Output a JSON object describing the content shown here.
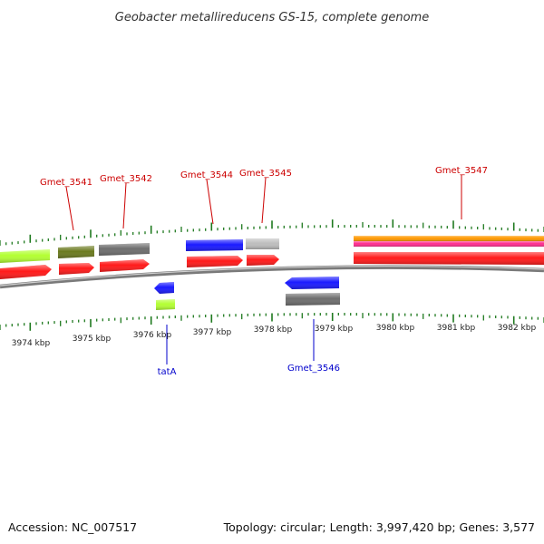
{
  "title": "Geobacter metallireducens GS-15, complete genome",
  "footer": {
    "accession": "Accession: NC_007517",
    "summary": "Topology: circular; Length: 3,997,420 bp; Genes: 3,577"
  },
  "scale_labels": [
    "3974 kbp",
    "3975 kbp",
    "3976 kbp",
    "3977 kbp",
    "3978 kbp",
    "3979 kbp",
    "3980 kbp",
    "3981 kbp",
    "3982 kbp"
  ],
  "gene_labels": [
    {
      "name": "Gmet_3541",
      "strand": "forward",
      "color": "#cc0000"
    },
    {
      "name": "Gmet_3542",
      "strand": "forward",
      "color": "#cc0000"
    },
    {
      "name": "Gmet_3544",
      "strand": "forward",
      "color": "#cc0000"
    },
    {
      "name": "Gmet_3545",
      "strand": "forward",
      "color": "#cc0000"
    },
    {
      "name": "Gmet_3547",
      "strand": "forward",
      "color": "#cc0000"
    },
    {
      "name": "tatA",
      "strand": "reverse",
      "color": "#0000cc"
    },
    {
      "name": "Gmet_3546",
      "strand": "reverse",
      "color": "#0000cc"
    }
  ],
  "colors": {
    "cds": "#ff1a1a",
    "lime": "#b3ff33",
    "olive": "#6b7a1f",
    "gray": "#6e6e6e",
    "light_gray": "#bdbdbd",
    "blue": "#1a1aff",
    "orange": "#ff9900",
    "pink": "#ff2d8f",
    "tick": "#1f7a1f",
    "backbone": "#8a8a8a"
  }
}
